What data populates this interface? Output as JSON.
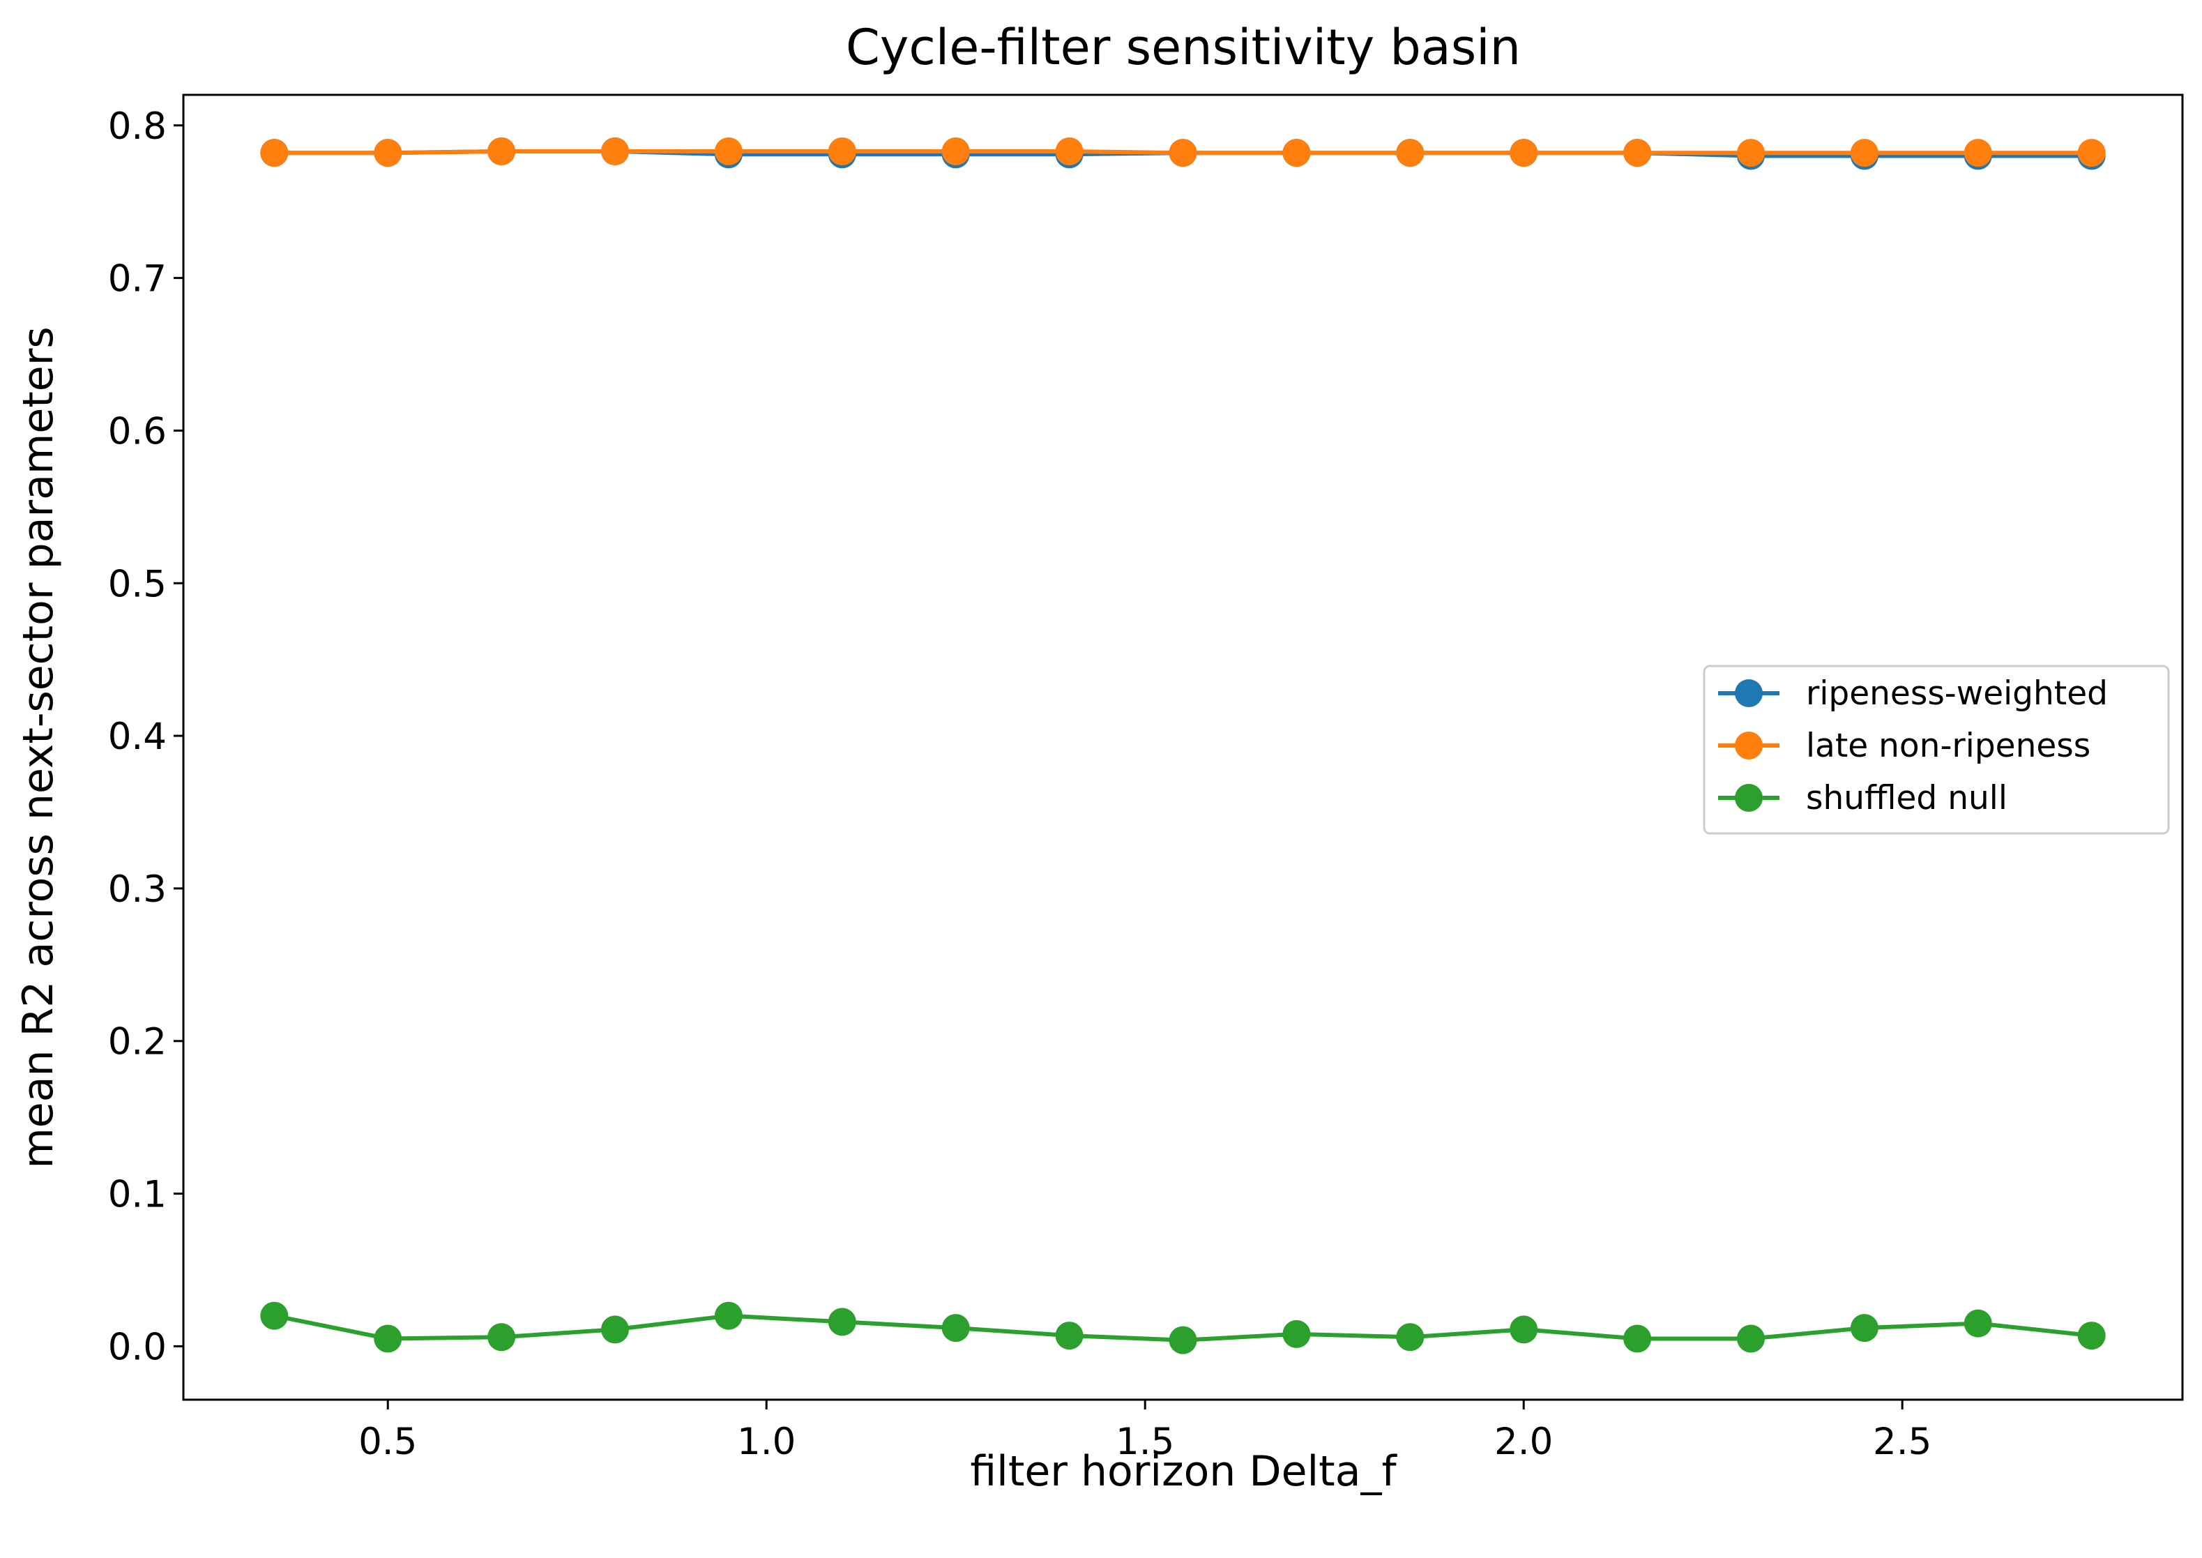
{
  "chart_data": {
    "type": "line",
    "title": "Cycle-filter sensitivity basin",
    "xlabel": "filter horizon Delta_f",
    "ylabel": "mean R2 across next-sector parameters",
    "xlim": [
      0.23,
      2.87
    ],
    "ylim": [
      -0.035,
      0.82
    ],
    "xticks": [
      0.5,
      1.0,
      1.5,
      2.0,
      2.5
    ],
    "xtick_labels": [
      "0.5",
      "1.0",
      "1.5",
      "2.0",
      "2.5"
    ],
    "yticks": [
      0.0,
      0.1,
      0.2,
      0.3,
      0.4,
      0.5,
      0.6,
      0.7,
      0.8
    ],
    "ytick_labels": [
      "0.0",
      "0.1",
      "0.2",
      "0.3",
      "0.4",
      "0.5",
      "0.6",
      "0.7",
      "0.8"
    ],
    "grid": false,
    "legend_position": "center-right",
    "x": [
      0.35,
      0.5,
      0.65,
      0.8,
      0.95,
      1.1,
      1.25,
      1.4,
      1.55,
      1.7,
      1.85,
      2.0,
      2.15,
      2.3,
      2.45,
      2.6,
      2.75
    ],
    "series": [
      {
        "name": "ripeness-weighted",
        "color": "#1f77b4",
        "values": [
          0.782,
          0.782,
          0.783,
          0.783,
          0.781,
          0.781,
          0.781,
          0.781,
          0.782,
          0.782,
          0.782,
          0.782,
          0.782,
          0.78,
          0.78,
          0.78,
          0.78
        ]
      },
      {
        "name": "late non-ripeness",
        "color": "#ff7f0e",
        "values": [
          0.782,
          0.782,
          0.783,
          0.783,
          0.783,
          0.783,
          0.783,
          0.783,
          0.782,
          0.782,
          0.782,
          0.782,
          0.782,
          0.782,
          0.782,
          0.782,
          0.782
        ]
      },
      {
        "name": "shuffled null",
        "color": "#2ca02c",
        "values": [
          0.02,
          0.005,
          0.006,
          0.011,
          0.02,
          0.016,
          0.012,
          0.007,
          0.004,
          0.008,
          0.006,
          0.011,
          0.005,
          0.005,
          0.012,
          0.015,
          0.007
        ]
      }
    ]
  }
}
